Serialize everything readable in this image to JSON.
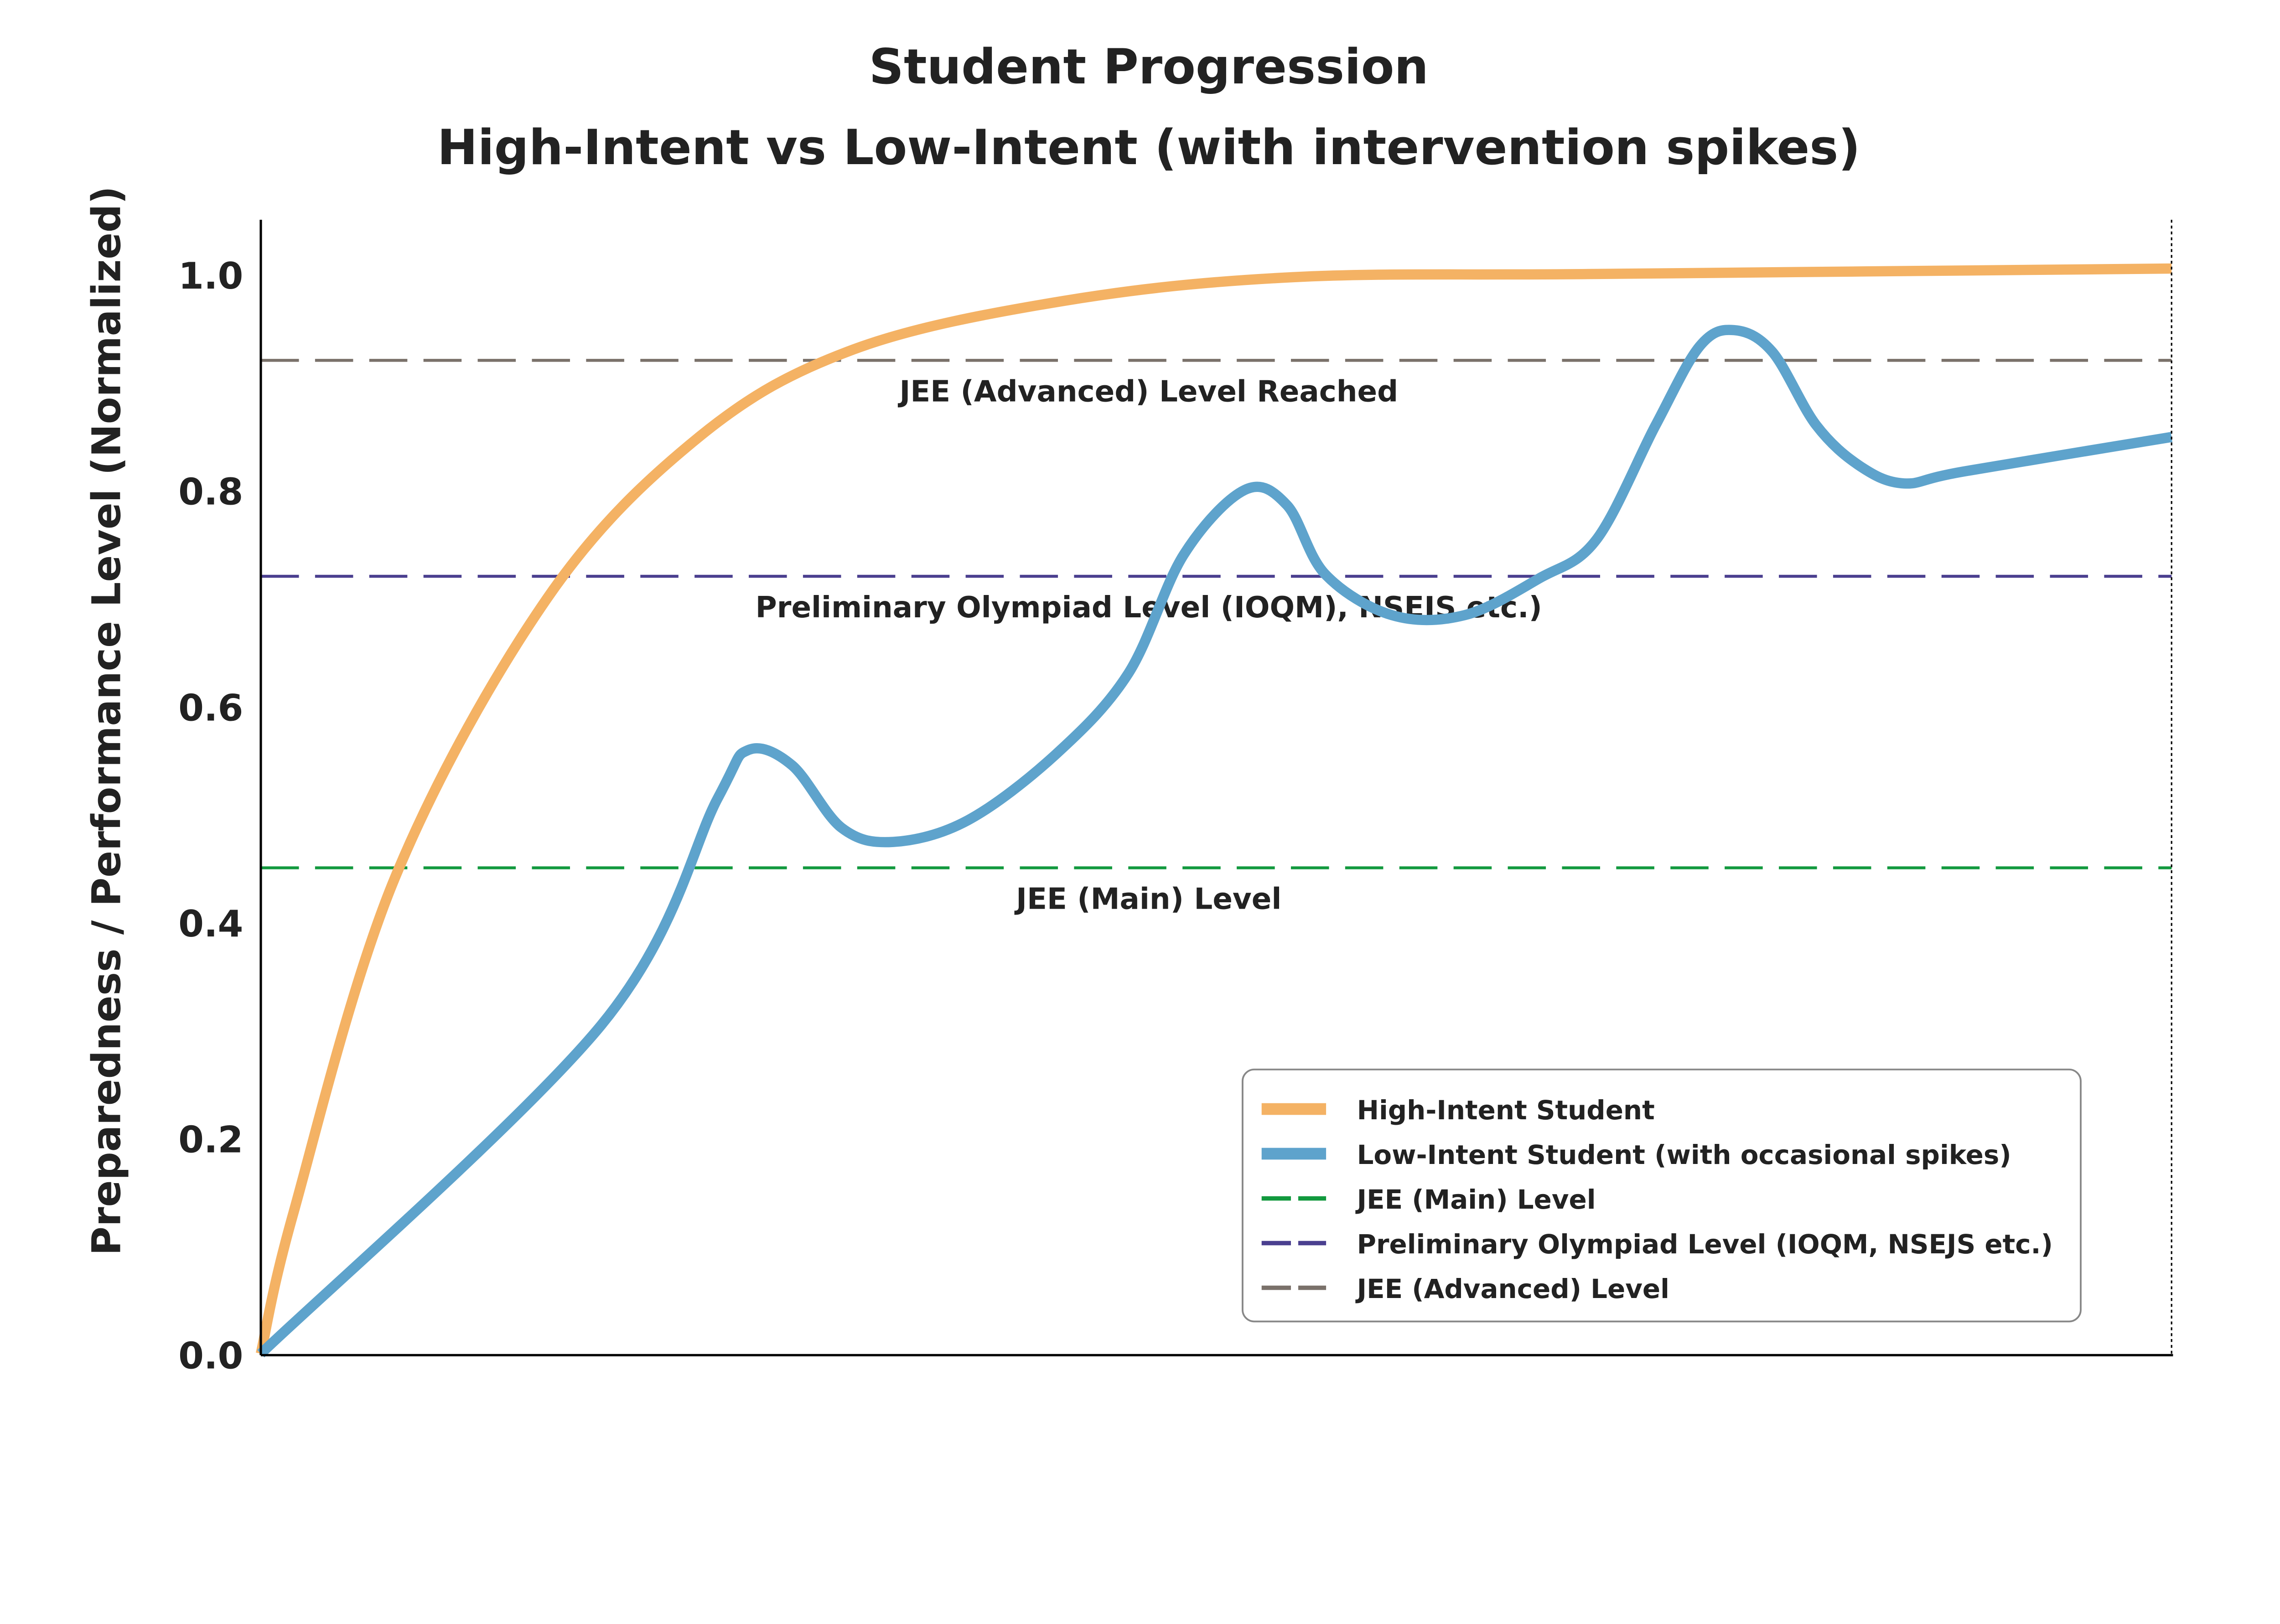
{
  "chart_data": {
    "type": "line",
    "title": "Student Progression",
    "subtitle": "High-Intent vs Low-Intent (with intervention spikes)",
    "xlabel": "",
    "ylabel": "Preparedness / Performance Level (Normalized)",
    "xlim": [
      0,
      1
    ],
    "ylim": [
      0,
      1.05
    ],
    "x_ticks_shown": false,
    "y_ticks": [
      "0.0",
      "0.2",
      "0.4",
      "0.6",
      "0.8",
      "1.0"
    ],
    "grid": false,
    "legend_position": "bottom-right",
    "series": [
      {
        "name": "High-Intent Student",
        "color": "#f4b264",
        "x": [
          0,
          0.017,
          0.07,
          0.15,
          0.23,
          0.31,
          0.42,
          0.54,
          0.7,
          1.0
        ],
        "y": [
          0,
          0.13,
          0.44,
          0.7,
          0.85,
          0.93,
          0.975,
          0.997,
          1.0,
          1.005
        ]
      },
      {
        "name": "Low-Intent Student (with occasional spikes)",
        "color": "#5ea3cc",
        "x": [
          0,
          0.178,
          0.239,
          0.255,
          0.278,
          0.304,
          0.331,
          0.37,
          0.416,
          0.454,
          0.483,
          0.515,
          0.537,
          0.557,
          0.592,
          0.63,
          0.669,
          0.699,
          0.73,
          0.753,
          0.771,
          0.791,
          0.814,
          0.837,
          0.86,
          0.891,
          1.0
        ],
        "y": [
          0,
          0.304,
          0.514,
          0.559,
          0.545,
          0.487,
          0.474,
          0.494,
          0.555,
          0.63,
          0.74,
          0.8,
          0.786,
          0.722,
          0.684,
          0.684,
          0.718,
          0.754,
          0.86,
          0.933,
          0.948,
          0.928,
          0.86,
          0.822,
          0.806,
          0.817,
          0.849
        ]
      }
    ],
    "reference_lines": [
      {
        "name": "JEE (Main) Level",
        "y": 0.45,
        "color": "#12993e",
        "annotation": "JEE (Main) Level"
      },
      {
        "name": "Preliminary Olympiad Level (IOQM, NSEJS etc.)",
        "y": 0.72,
        "color": "#4a3f8f",
        "annotation": "Preliminary Olympiad Level (IOQM), NSEJS etc.)"
      },
      {
        "name": "JEE (Advanced) Level",
        "y": 0.92,
        "color": "#7a716a",
        "annotation": "JEE (Advanced) Level Reached"
      }
    ]
  }
}
